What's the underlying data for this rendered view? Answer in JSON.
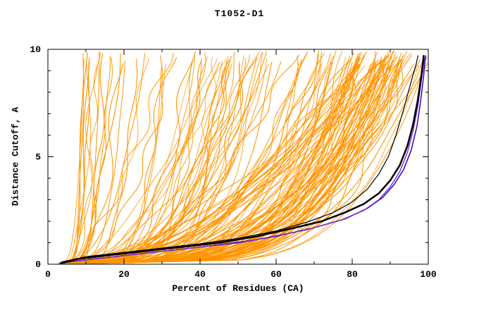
{
  "title": "T1052-D1",
  "axes": {
    "x": {
      "label": "Percent of Residues (CA)",
      "min": 0,
      "max": 100,
      "major_ticks": [
        0,
        20,
        40,
        60,
        80,
        100
      ],
      "minor_ticks": [
        10,
        30,
        50,
        70,
        90
      ]
    },
    "y": {
      "label": "Distance Cutoff, A",
      "min": 0,
      "max": 10,
      "major_ticks": [
        0,
        5,
        10
      ],
      "minor_ticks": [
        1,
        2,
        3,
        4,
        6,
        7,
        8,
        9
      ]
    }
  },
  "colors": {
    "background": "#FFFFFF",
    "axis": "#000000",
    "orange": "#FF9500",
    "blue": "#3300CC",
    "purple": "#7A2BD0",
    "black": "#000000"
  },
  "chart_data": {
    "type": "line",
    "title": "T1052-D1",
    "xlabel": "Percent of Residues (CA)",
    "ylabel": "Distance Cutoff, A",
    "xlim": [
      0,
      100
    ],
    "ylim": [
      0,
      10
    ],
    "grid": false,
    "legend": "none",
    "background_series": {
      "color": "#FF9500",
      "count": 155,
      "seed": 7,
      "start_x_range": [
        2.5,
        6
      ],
      "end_y_range": [
        9.25,
        9.95
      ]
    },
    "highlighted_series": [
      {
        "name": "blue-curve",
        "color": "#3300CC",
        "width": 1.5,
        "points": [
          [
            3,
            0.05
          ],
          [
            10,
            0.2
          ],
          [
            20,
            0.4
          ],
          [
            30,
            0.6
          ],
          [
            40,
            0.8
          ],
          [
            50,
            1.0
          ],
          [
            60,
            1.3
          ],
          [
            70,
            1.7
          ],
          [
            78,
            2.1
          ],
          [
            84,
            2.6
          ],
          [
            88,
            3.1
          ],
          [
            91,
            3.7
          ],
          [
            93.5,
            4.4
          ],
          [
            95.5,
            5.3
          ],
          [
            97,
            6.4
          ],
          [
            98,
            7.6
          ],
          [
            98.8,
            8.8
          ],
          [
            99.3,
            9.7
          ]
        ]
      },
      {
        "name": "purple-curve",
        "color": "#7A2BD0",
        "width": 1.4,
        "points": [
          [
            3,
            0.05
          ],
          [
            12,
            0.25
          ],
          [
            25,
            0.5
          ],
          [
            40,
            0.8
          ],
          [
            55,
            1.15
          ],
          [
            68,
            1.6
          ],
          [
            77,
            2.05
          ],
          [
            83,
            2.5
          ],
          [
            87,
            3.0
          ],
          [
            90,
            3.6
          ],
          [
            92.5,
            4.3
          ],
          [
            94.5,
            5.2
          ],
          [
            96,
            6.2
          ],
          [
            97.3,
            7.4
          ],
          [
            98.3,
            8.7
          ],
          [
            99,
            9.6
          ]
        ]
      },
      {
        "name": "black-thin-curve",
        "color": "#000000",
        "width": 1.2,
        "points": [
          [
            3.5,
            0.1
          ],
          [
            10,
            0.35
          ],
          [
            20,
            0.55
          ],
          [
            30,
            0.75
          ],
          [
            40,
            0.95
          ],
          [
            50,
            1.2
          ],
          [
            60,
            1.55
          ],
          [
            68,
            1.95
          ],
          [
            75,
            2.4
          ],
          [
            80,
            2.9
          ],
          [
            84,
            3.5
          ],
          [
            87,
            4.2
          ],
          [
            89.5,
            5.0
          ],
          [
            91.5,
            6.0
          ],
          [
            93.5,
            7.2
          ],
          [
            95.5,
            8.5
          ],
          [
            96.8,
            9.3
          ],
          [
            97.3,
            9.7
          ]
        ]
      },
      {
        "name": "black-thick-curve",
        "color": "#000000",
        "width": 2.5,
        "points": [
          [
            3.5,
            0.05
          ],
          [
            8,
            0.25
          ],
          [
            15,
            0.4
          ],
          [
            25,
            0.6
          ],
          [
            35,
            0.8
          ],
          [
            45,
            1.0
          ],
          [
            55,
            1.3
          ],
          [
            65,
            1.7
          ],
          [
            72,
            2.0
          ],
          [
            78,
            2.4
          ],
          [
            83,
            2.8
          ],
          [
            87,
            3.3
          ],
          [
            90,
            3.9
          ],
          [
            92.5,
            4.6
          ],
          [
            94.5,
            5.5
          ],
          [
            96,
            6.5
          ],
          [
            97.2,
            7.6
          ],
          [
            98.2,
            8.8
          ],
          [
            98.8,
            9.7
          ]
        ]
      }
    ]
  }
}
